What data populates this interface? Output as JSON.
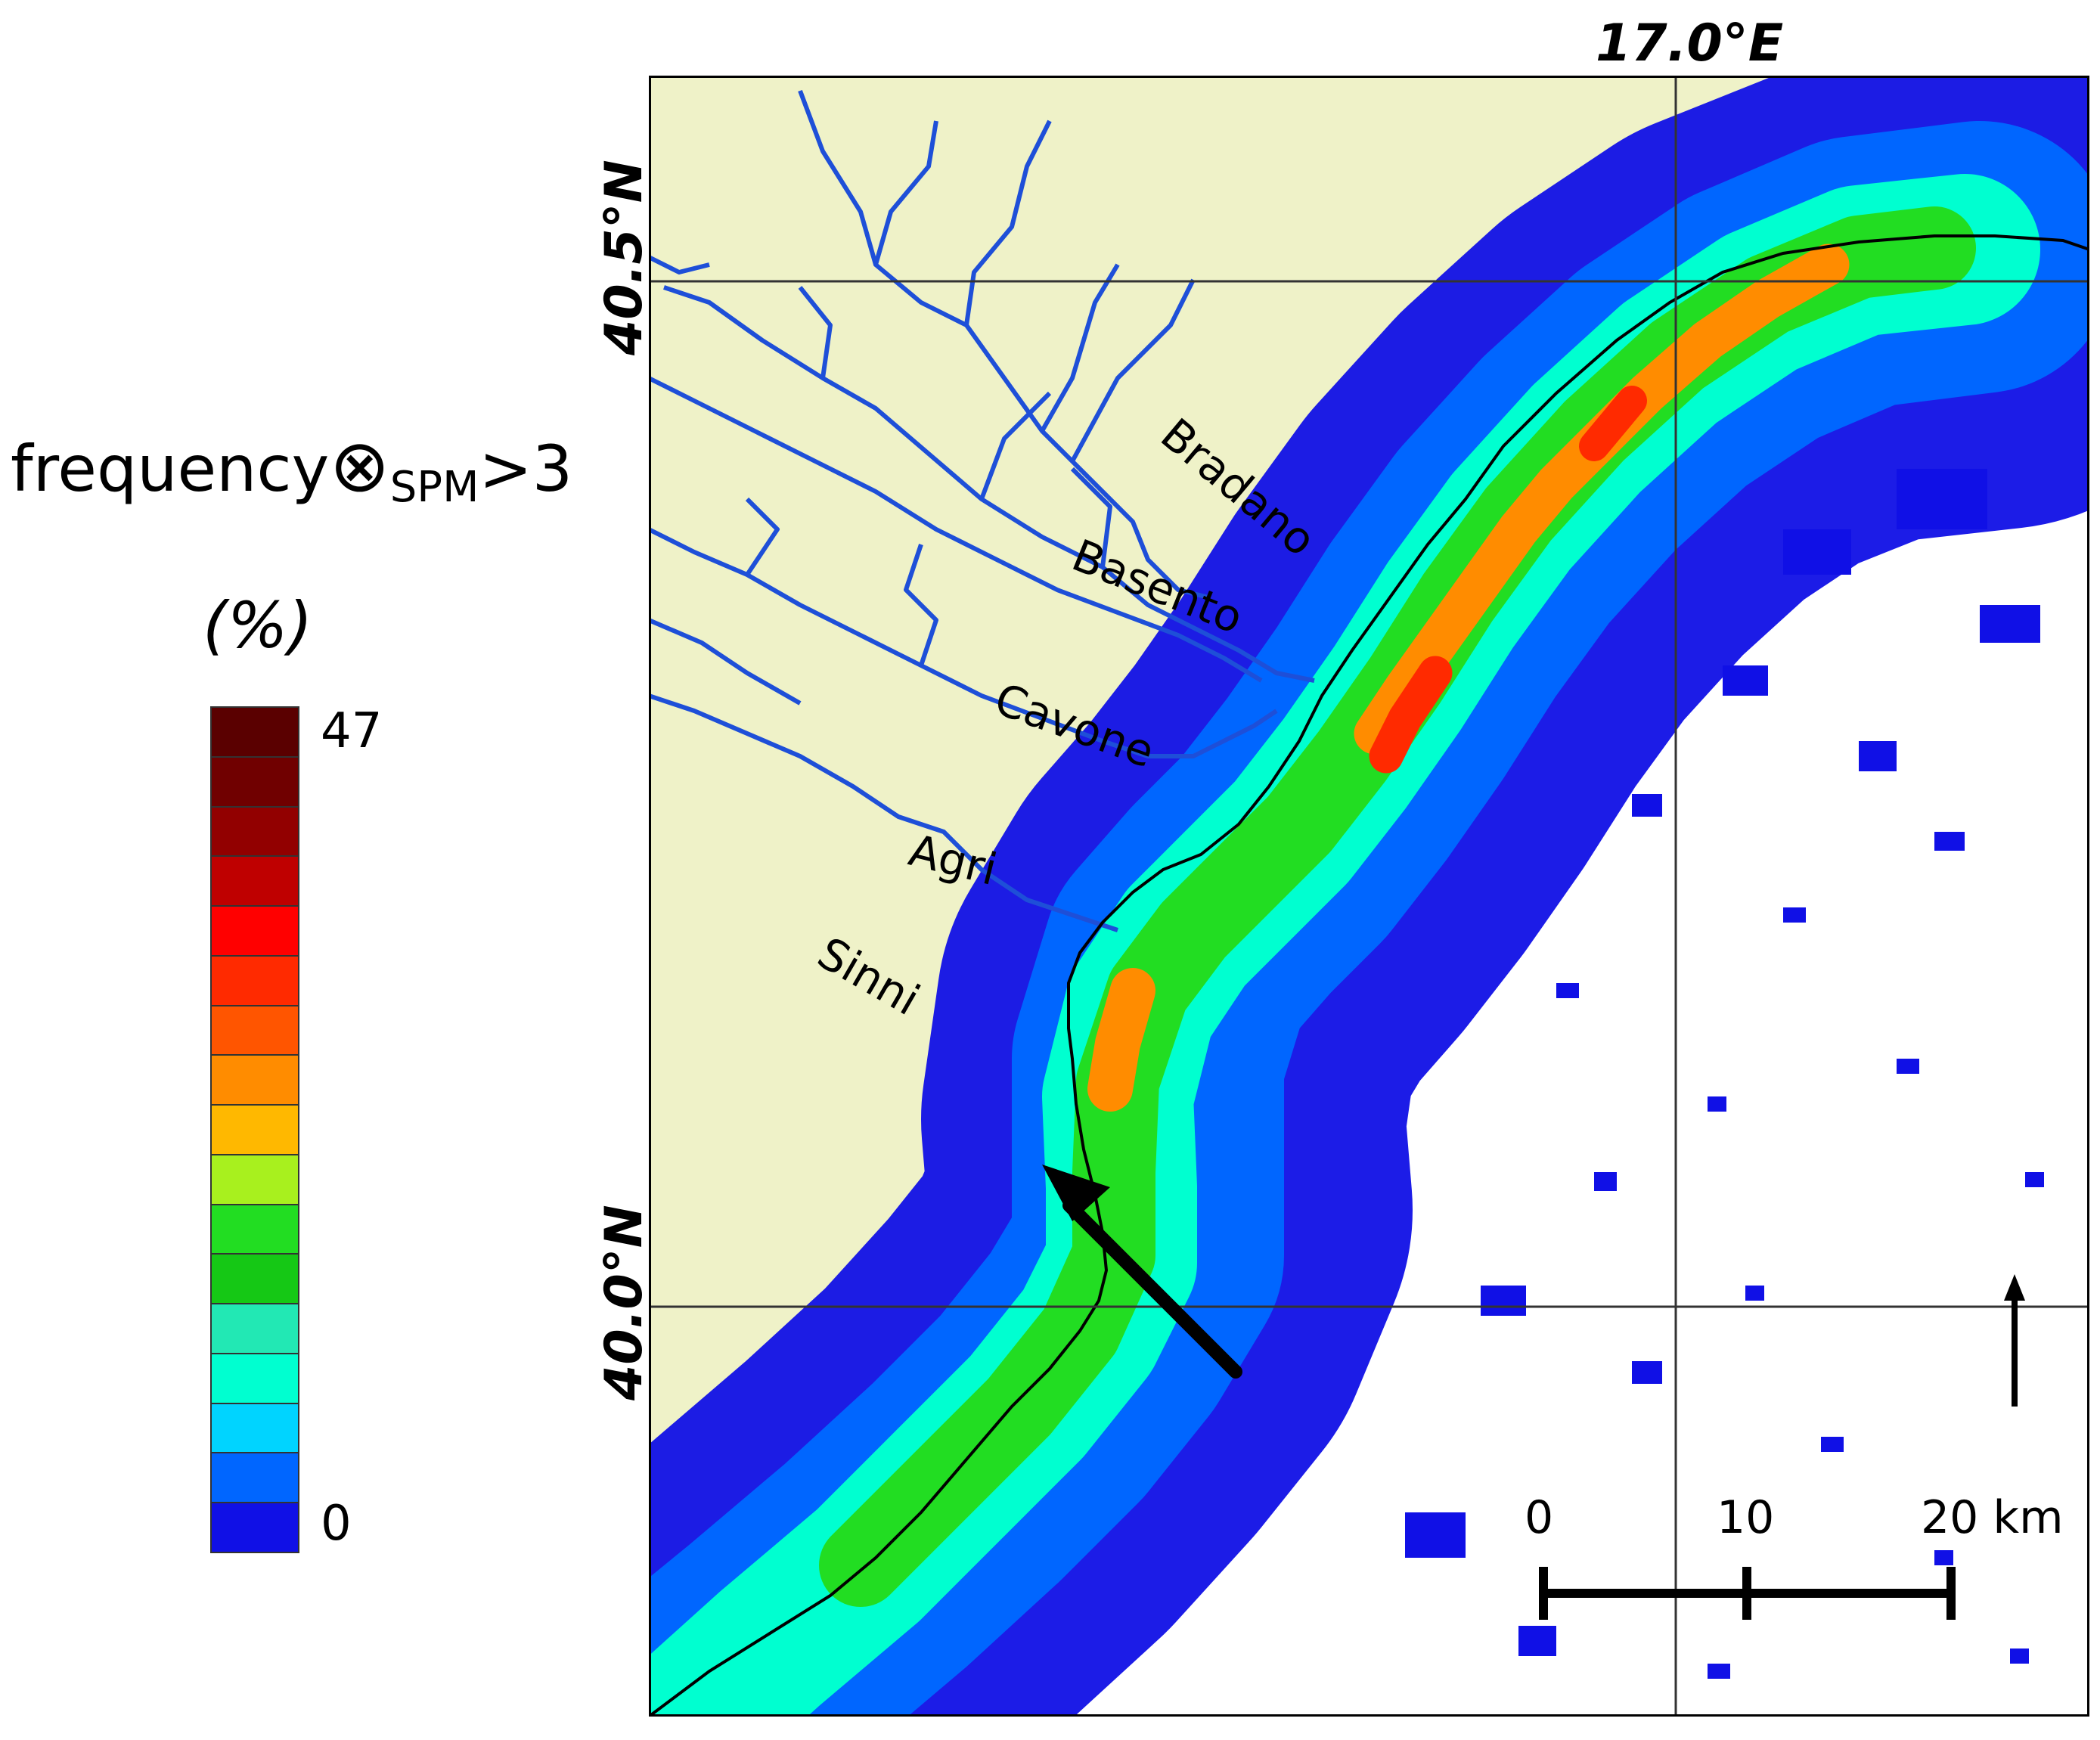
{
  "legend": {
    "title_main": "frequency",
    "title_symbol": "⊗",
    "title_sub": "SPM",
    "title_tail": ">3",
    "unit": "(%)",
    "max_label": "47",
    "min_label": "0",
    "colors": [
      "#5a0000",
      "#700000",
      "#920000",
      "#bf0000",
      "#ff0000",
      "#ff2a00",
      "#ff5500",
      "#ff8c00",
      "#ffb800",
      "#a8f01e",
      "#22dd22",
      "#15c815",
      "#22e8b4",
      "#00ffd0",
      "#00d4ff",
      "#0066ff",
      "#1010e6"
    ]
  },
  "map": {
    "land_color": "#eff2c8",
    "sea_color": "#ffffff",
    "river_color": "#1e4fd8",
    "lat_labels": [
      "40.5°N",
      "40.0°N"
    ],
    "lon_label": "17.0°E",
    "rivers": [
      "Bradano",
      "Basento",
      "Cavone",
      "Agri",
      "Sinni"
    ],
    "scale_bar": {
      "labels": [
        "0",
        "10",
        "20 km"
      ]
    }
  }
}
